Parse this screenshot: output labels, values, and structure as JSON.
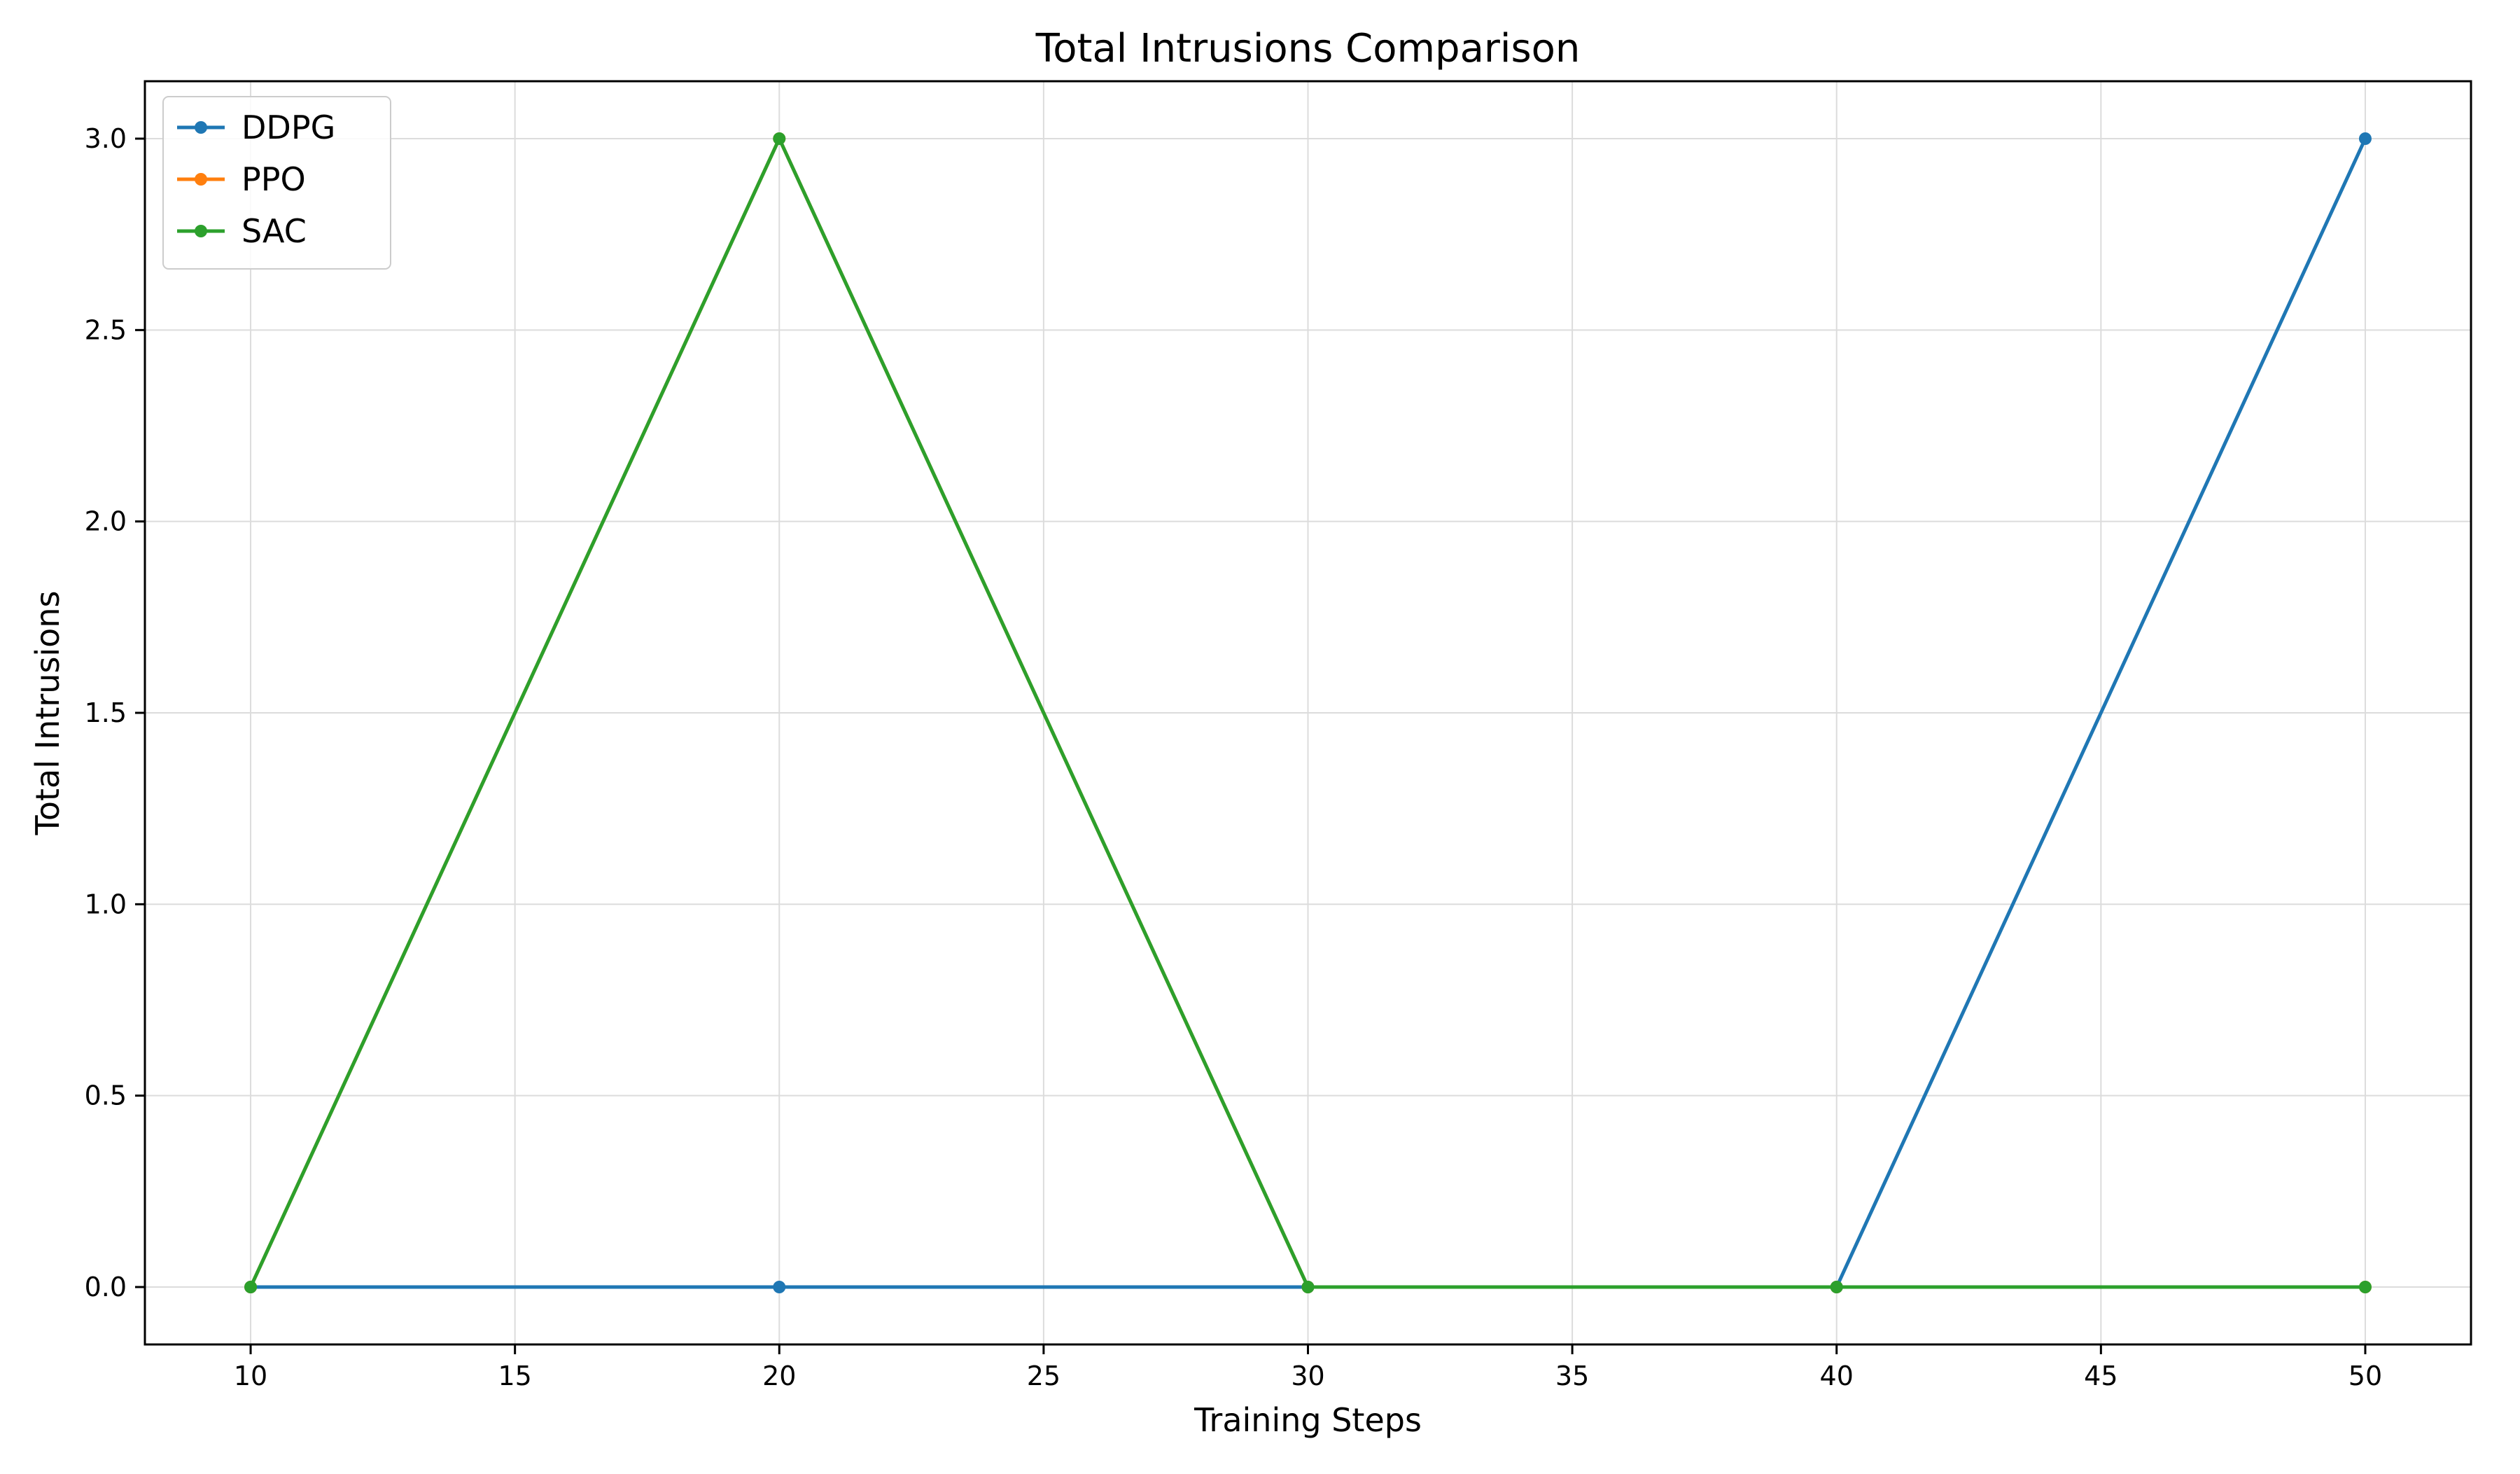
{
  "chart_data": {
    "type": "line",
    "title": "Total Intrusions Comparison",
    "xlabel": "Training Steps",
    "ylabel": "Total Intrusions",
    "xlim": [
      8,
      52
    ],
    "ylim": [
      -0.15,
      3.15
    ],
    "xticks": [
      10,
      15,
      20,
      25,
      30,
      35,
      40,
      45,
      50
    ],
    "xtick_labels": [
      "10",
      "15",
      "20",
      "25",
      "30",
      "35",
      "40",
      "45",
      "50"
    ],
    "yticks": [
      0.0,
      0.5,
      1.0,
      1.5,
      2.0,
      2.5,
      3.0
    ],
    "ytick_labels": [
      "0.0",
      "0.5",
      "1.0",
      "1.5",
      "2.0",
      "2.5",
      "3.0"
    ],
    "grid": true,
    "legend_position": "top-left",
    "x": [
      10,
      20,
      30,
      40,
      50
    ],
    "series": [
      {
        "name": "DDPG",
        "color": "#1f77b4",
        "values": [
          0,
          0,
          0,
          0,
          3
        ]
      },
      {
        "name": "PPO",
        "color": "#ff7f0e",
        "values": [
          0,
          3,
          0,
          0,
          0
        ]
      },
      {
        "name": "SAC",
        "color": "#2ca02c",
        "values": [
          0,
          3,
          0,
          0,
          0
        ]
      }
    ]
  }
}
